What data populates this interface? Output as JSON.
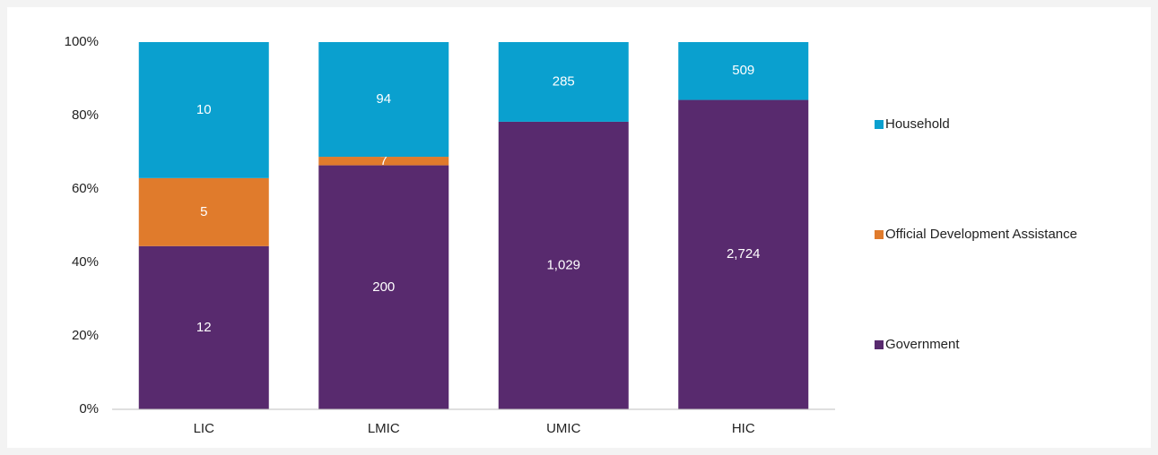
{
  "chart_data": {
    "type": "bar",
    "stacked": "percent",
    "categories": [
      "LIC",
      "LMIC",
      "UMIC",
      "HIC"
    ],
    "series": [
      {
        "name": "Government",
        "color": "#582a6e",
        "values": [
          12,
          200,
          1029,
          2724
        ],
        "value_labels": [
          "12",
          "200",
          "1,029",
          "2,724"
        ]
      },
      {
        "name": "Official Development Assistance",
        "color": "#e07b2c",
        "values": [
          5,
          7,
          0,
          0
        ],
        "value_labels": [
          "5",
          "7",
          null,
          null
        ]
      },
      {
        "name": "Household",
        "color": "#0aa0cf",
        "values": [
          10,
          94,
          285,
          509
        ]
      }
    ],
    "ylim": [
      0,
      100
    ],
    "yticks": [
      {
        "value": 0,
        "label": "0%"
      },
      {
        "value": 20,
        "label": "20%"
      },
      {
        "value": 40,
        "label": "40%"
      },
      {
        "value": 60,
        "label": "60%"
      },
      {
        "value": 80,
        "label": "80%"
      },
      {
        "value": 100,
        "label": "100%"
      }
    ],
    "legend": "right"
  }
}
